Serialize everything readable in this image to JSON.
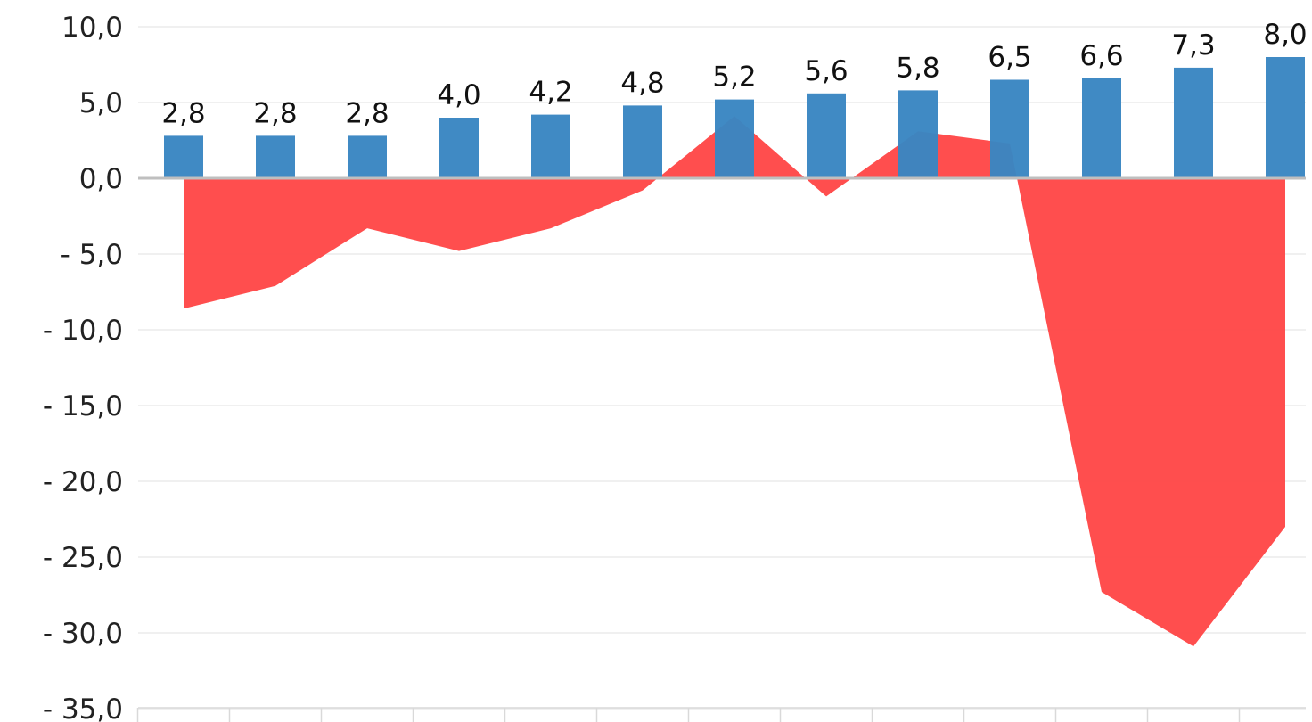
{
  "chart_data": {
    "type": "bar",
    "title": "",
    "xlabel": "",
    "ylabel": "",
    "ylim": [
      -35,
      10
    ],
    "y_ticks": [
      10,
      5,
      0,
      -5,
      -10,
      -15,
      -20,
      -25,
      -30,
      -35
    ],
    "y_tick_labels": [
      "10,0",
      "5,0",
      "0,0",
      "- 5,0",
      "- 10,0",
      "- 15,0",
      "- 20,0",
      "- 25,0",
      "- 30,0",
      "- 35,0"
    ],
    "grid": true,
    "legend": "none",
    "series": [
      {
        "type": "bar",
        "color": "#3a86c2",
        "values": [
          2.8,
          2.8,
          2.8,
          4.0,
          4.2,
          4.8,
          5.2,
          5.6,
          5.8,
          6.5,
          6.6,
          7.3,
          8.0
        ],
        "labels": [
          "2,8",
          "2,8",
          "2,8",
          "4,0",
          "4,2",
          "4,8",
          "5,2",
          "5,6",
          "5,8",
          "6,5",
          "6,6",
          "7,3",
          "8,0"
        ]
      },
      {
        "type": "area",
        "color": "#ff4444",
        "values": [
          -8.6,
          -7.1,
          -3.3,
          -4.8,
          -3.3,
          -0.8,
          4.1,
          -1.2,
          3.1,
          2.3,
          -27.3,
          -30.9,
          -23.0
        ]
      }
    ]
  }
}
